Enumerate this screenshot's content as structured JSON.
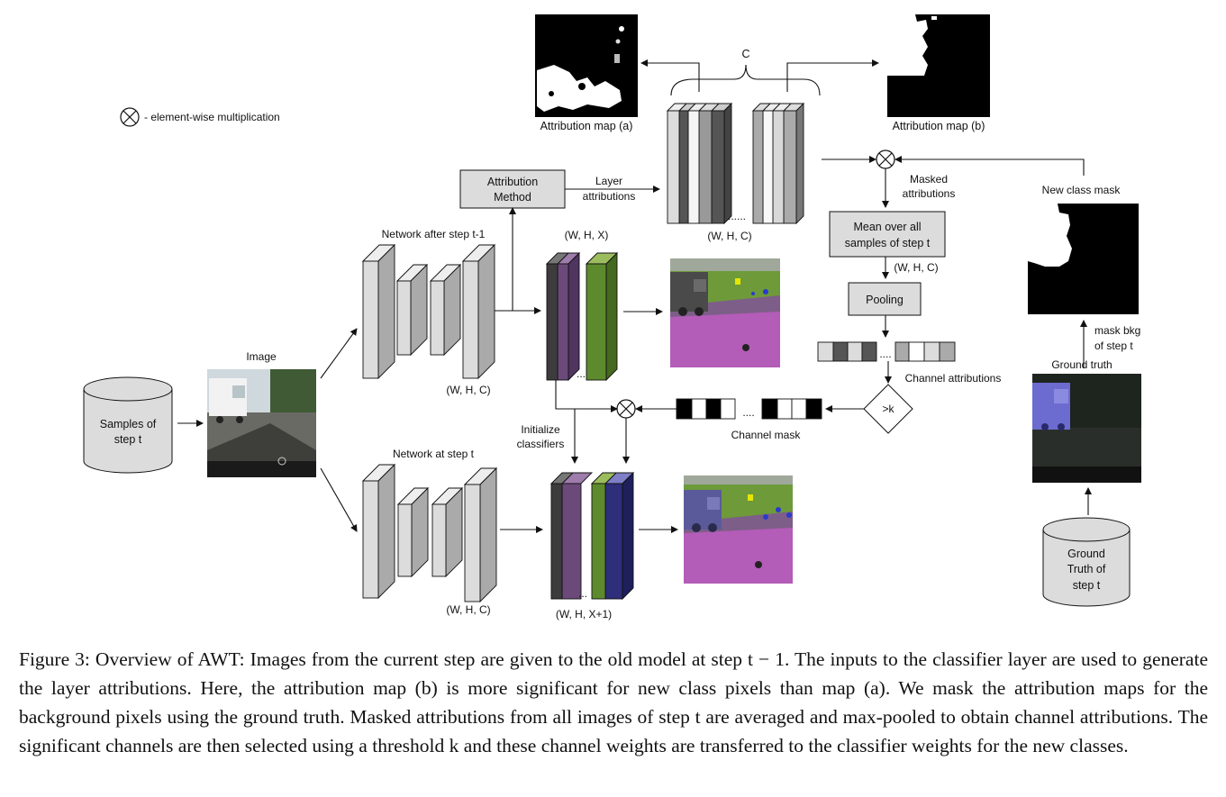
{
  "legend": {
    "symbol_label": "- element-wise multiplication"
  },
  "labels": {
    "attribution_map_a": "Attribution map (a)",
    "attribution_map_b": "Attribution map (b)",
    "c_brace": "C",
    "attribution_method_line1": "Attribution",
    "attribution_method_line2": "Method",
    "layer_attributions_line1": "Layer",
    "layer_attributions_line2": "attributions",
    "dots_whc": "......",
    "whc_attr": "(W, H, C)",
    "masked_attr_line1": "Masked",
    "masked_attr_line2": "attributions",
    "new_class_mask": "New class mask",
    "mean_line1": "Mean over all",
    "mean_line2": "samples of step t",
    "whc_mean": "(W, H, C)",
    "pooling": "Pooling",
    "channel_attr_dots": "....",
    "channel_attributions": "Channel attributions",
    "threshold": ">k",
    "channel_mask_dots": "....",
    "channel_mask": "Channel mask",
    "network_prev": "Network after step t-1",
    "whx": "(W, H, X)",
    "whc_prev": "(W, H, C)",
    "image": "Image",
    "samples_line1": "Samples of",
    "samples_line2": "step t",
    "initialize_line1": "Initialize",
    "initialize_line2": "classifiers",
    "network_cur": "Network at step t",
    "whc_cur": "(W, H, C)",
    "whx1": "(W, H, X+1)",
    "mask_bkg_line1": "mask bkg",
    "mask_bkg_line2": "of step t",
    "ground_truth": "Ground truth",
    "gt_db_line1": "Ground",
    "gt_db_line2": "Truth of",
    "gt_db_line3": "step t",
    "dots_prev": "...",
    "dots_cur": "..."
  },
  "caption": "Figure 3: Overview of AWT: Images from the current step are given to the old model at step t − 1. The inputs to the classifier layer are used to generate the layer attributions. Here, the attribution map (b) is more significant for new class pixels than map (a). We mask the attribution maps for the background pixels using the ground truth. Masked attributions from all images of step t are averaged and max-pooled to obtain channel attributions. The significant channels are then selected using a threshold k and these channel weights are transferred to the classifier weights for the new classes.",
  "colors": {
    "box_fill": "#dcdcdc",
    "purple": "#6b4a7a",
    "green": "#5e8a2e",
    "navy": "#2e2e7a",
    "dark_slab": "#3c3c3c",
    "seg_pink": "#b35cb8",
    "seg_grass": "#6e9a3a"
  }
}
